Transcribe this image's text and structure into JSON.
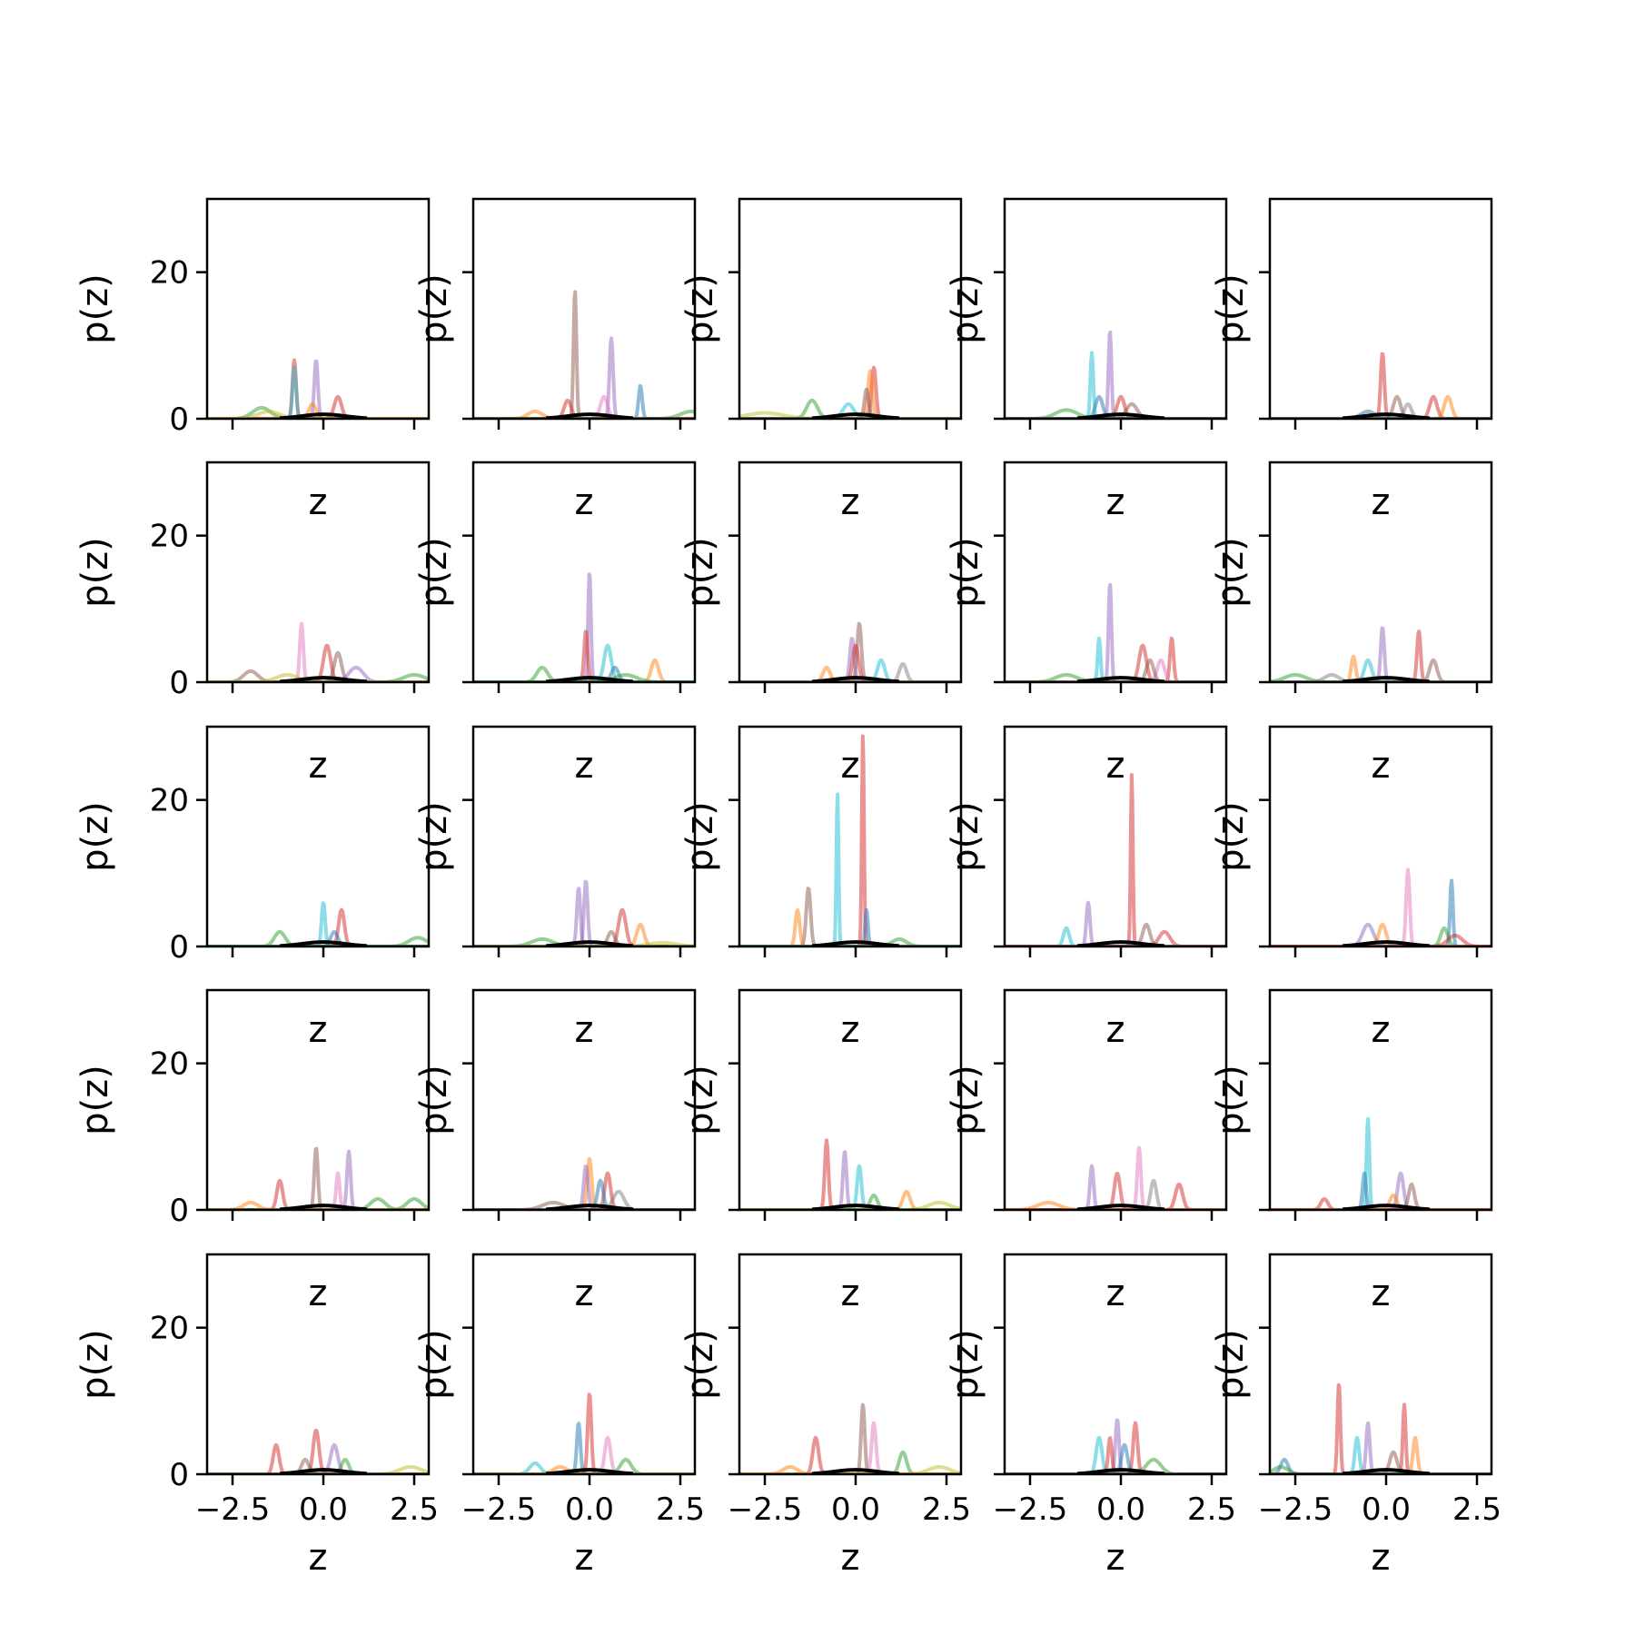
{
  "chart_data": {
    "type": "line",
    "layout": "5x5 grid of line plots",
    "xlabel": "z",
    "ylabel": "p(z)",
    "xlim": [
      -3.2,
      2.9
    ],
    "ylim": [
      0,
      30
    ],
    "xticks": [
      -2.5,
      0.0,
      2.5
    ],
    "xtick_labels": [
      "−2.5",
      "0.0",
      "2.5"
    ],
    "yticks": [
      0,
      20
    ],
    "ytick_labels": [
      "0",
      "20"
    ],
    "palette": [
      "#1f77b4",
      "#ff7f0e",
      "#2ca02c",
      "#d62728",
      "#9467bd",
      "#8c564b",
      "#e377c2",
      "#7f7f7f",
      "#bcbd22",
      "#17becf"
    ],
    "panels": [
      {
        "peaks": [
          [
            -1.7,
            1.5,
            0.25,
            2
          ],
          [
            -0.8,
            8,
            0.05,
            3
          ],
          [
            -0.8,
            7,
            0.05,
            9
          ],
          [
            -0.2,
            8,
            0.05,
            4
          ],
          [
            0.4,
            3,
            0.1,
            3
          ],
          [
            -0.3,
            2,
            0.1,
            1
          ],
          [
            -1.5,
            1,
            0.3,
            8
          ]
        ]
      },
      {
        "peaks": [
          [
            -0.4,
            17.5,
            0.04,
            5
          ],
          [
            0.6,
            11,
            0.05,
            4
          ],
          [
            1.4,
            4.5,
            0.05,
            0
          ],
          [
            -1.5,
            1,
            0.2,
            1
          ],
          [
            0.4,
            3,
            0.1,
            6
          ],
          [
            -0.6,
            2.5,
            0.1,
            3
          ],
          [
            2.8,
            1,
            0.3,
            2
          ]
        ]
      },
      {
        "peaks": [
          [
            0.5,
            7,
            0.06,
            3
          ],
          [
            0.4,
            6.5,
            0.06,
            1
          ],
          [
            -1.2,
            2.5,
            0.15,
            2
          ],
          [
            -0.2,
            2,
            0.15,
            9
          ],
          [
            -2.5,
            0.8,
            0.5,
            8
          ],
          [
            0.3,
            4,
            0.06,
            5
          ]
        ]
      },
      {
        "peaks": [
          [
            -0.3,
            12,
            0.04,
            4
          ],
          [
            -0.8,
            9,
            0.04,
            9
          ],
          [
            -1.5,
            1.2,
            0.3,
            2
          ],
          [
            0.0,
            3,
            0.1,
            3
          ],
          [
            -0.6,
            3,
            0.1,
            0
          ],
          [
            0.3,
            2,
            0.15,
            5
          ]
        ]
      },
      {
        "peaks": [
          [
            -0.1,
            9,
            0.05,
            3
          ],
          [
            0.3,
            3,
            0.1,
            5
          ],
          [
            1.3,
            3,
            0.1,
            3
          ],
          [
            1.7,
            3,
            0.1,
            1
          ],
          [
            0.6,
            2,
            0.1,
            7
          ],
          [
            -0.5,
            1,
            0.2,
            0
          ]
        ]
      },
      {
        "peaks": [
          [
            -0.6,
            8,
            0.05,
            6
          ],
          [
            0.1,
            5,
            0.1,
            3
          ],
          [
            0.4,
            4,
            0.1,
            5
          ],
          [
            -2.0,
            1.5,
            0.2,
            5
          ],
          [
            0.9,
            2,
            0.2,
            4
          ],
          [
            2.5,
            1,
            0.3,
            2
          ],
          [
            -1.0,
            1,
            0.3,
            8
          ]
        ]
      },
      {
        "peaks": [
          [
            0.0,
            15,
            0.04,
            4
          ],
          [
            -0.1,
            7,
            0.05,
            3
          ],
          [
            0.5,
            5,
            0.1,
            9
          ],
          [
            1.8,
            3,
            0.1,
            1
          ],
          [
            -1.3,
            2,
            0.15,
            2
          ],
          [
            0.7,
            2,
            0.1,
            0
          ],
          [
            1.0,
            1,
            0.3,
            2
          ]
        ]
      },
      {
        "peaks": [
          [
            0.1,
            8,
            0.06,
            5
          ],
          [
            -0.1,
            6,
            0.06,
            4
          ],
          [
            0.0,
            5,
            0.08,
            3
          ],
          [
            0.7,
            3,
            0.1,
            9
          ],
          [
            -0.8,
            2,
            0.1,
            1
          ],
          [
            1.3,
            2.5,
            0.1,
            7
          ]
        ]
      },
      {
        "peaks": [
          [
            -0.3,
            13.5,
            0.04,
            4
          ],
          [
            -0.6,
            6,
            0.04,
            9
          ],
          [
            0.6,
            5,
            0.1,
            3
          ],
          [
            1.4,
            6,
            0.05,
            3
          ],
          [
            1.1,
            3,
            0.1,
            6
          ],
          [
            -1.5,
            1,
            0.3,
            2
          ],
          [
            0.8,
            3,
            0.1,
            5
          ]
        ]
      },
      {
        "peaks": [
          [
            0.9,
            7,
            0.05,
            3
          ],
          [
            -0.1,
            7.5,
            0.05,
            4
          ],
          [
            -0.9,
            3.5,
            0.06,
            1
          ],
          [
            -0.5,
            3,
            0.1,
            9
          ],
          [
            1.3,
            3,
            0.1,
            5
          ],
          [
            -2.5,
            1,
            0.3,
            2
          ],
          [
            -1.5,
            1,
            0.2,
            7
          ]
        ]
      },
      {
        "peaks": [
          [
            0.0,
            6,
            0.05,
            9
          ],
          [
            0.5,
            5,
            0.08,
            3
          ],
          [
            -1.2,
            2,
            0.15,
            2
          ],
          [
            2.6,
            1.2,
            0.25,
            2
          ],
          [
            0.3,
            2,
            0.1,
            0
          ]
        ]
      },
      {
        "peaks": [
          [
            -0.1,
            9,
            0.05,
            4
          ],
          [
            -0.3,
            8,
            0.05,
            4
          ],
          [
            0.9,
            5,
            0.1,
            3
          ],
          [
            1.4,
            3,
            0.1,
            1
          ],
          [
            -1.3,
            1,
            0.3,
            2
          ],
          [
            0.6,
            2,
            0.1,
            5
          ],
          [
            2.0,
            0.5,
            0.4,
            8
          ]
        ]
      },
      {
        "peaks": [
          [
            0.2,
            29,
            0.03,
            3
          ],
          [
            -0.5,
            21,
            0.03,
            9
          ],
          [
            -1.3,
            8,
            0.06,
            5
          ],
          [
            -1.6,
            5,
            0.06,
            1
          ],
          [
            0.3,
            5,
            0.04,
            0
          ],
          [
            1.2,
            1,
            0.2,
            2
          ]
        ]
      },
      {
        "peaks": [
          [
            0.3,
            23.5,
            0.03,
            3
          ],
          [
            -0.9,
            6,
            0.05,
            4
          ],
          [
            -1.5,
            2.5,
            0.08,
            9
          ],
          [
            0.7,
            3,
            0.1,
            5
          ],
          [
            1.2,
            2,
            0.15,
            3
          ]
        ]
      },
      {
        "peaks": [
          [
            0.6,
            10.5,
            0.05,
            6
          ],
          [
            1.8,
            9,
            0.04,
            0
          ],
          [
            1.6,
            2.5,
            0.1,
            2
          ],
          [
            -0.5,
            3,
            0.15,
            4
          ],
          [
            -0.1,
            3,
            0.1,
            1
          ],
          [
            1.9,
            1.5,
            0.2,
            3
          ]
        ]
      },
      {
        "peaks": [
          [
            -0.2,
            8.5,
            0.05,
            5
          ],
          [
            0.7,
            8,
            0.05,
            4
          ],
          [
            0.4,
            5,
            0.05,
            6
          ],
          [
            -1.2,
            4,
            0.08,
            3
          ],
          [
            2.5,
            1.5,
            0.2,
            2
          ],
          [
            1.5,
            1.5,
            0.2,
            2
          ],
          [
            -2.0,
            1,
            0.2,
            1
          ]
        ]
      },
      {
        "peaks": [
          [
            0.0,
            7,
            0.06,
            1
          ],
          [
            -0.1,
            6,
            0.06,
            4
          ],
          [
            0.5,
            5,
            0.08,
            3
          ],
          [
            0.3,
            4,
            0.08,
            0
          ],
          [
            0.8,
            2.5,
            0.15,
            7
          ],
          [
            -1.0,
            1,
            0.3,
            5
          ]
        ]
      },
      {
        "peaks": [
          [
            -0.8,
            9.5,
            0.05,
            3
          ],
          [
            -0.3,
            8,
            0.05,
            4
          ],
          [
            0.1,
            6,
            0.06,
            9
          ],
          [
            1.4,
            2.5,
            0.1,
            1
          ],
          [
            2.3,
            1,
            0.3,
            8
          ],
          [
            0.5,
            2,
            0.1,
            2
          ]
        ]
      },
      {
        "peaks": [
          [
            0.5,
            8.5,
            0.05,
            6
          ],
          [
            -0.8,
            6,
            0.05,
            4
          ],
          [
            -0.1,
            5,
            0.08,
            3
          ],
          [
            0.9,
            4,
            0.08,
            7
          ],
          [
            1.6,
            3.5,
            0.1,
            3
          ],
          [
            -2.0,
            1,
            0.3,
            1
          ]
        ]
      },
      {
        "peaks": [
          [
            -0.5,
            12.5,
            0.04,
            9
          ],
          [
            -0.6,
            5,
            0.05,
            0
          ],
          [
            0.4,
            5,
            0.08,
            4
          ],
          [
            0.7,
            3.5,
            0.08,
            5
          ],
          [
            -1.7,
            1.5,
            0.1,
            3
          ],
          [
            0.2,
            2,
            0.1,
            1
          ]
        ]
      },
      {
        "peaks": [
          [
            -0.2,
            6,
            0.08,
            3
          ],
          [
            -1.3,
            4,
            0.08,
            3
          ],
          [
            0.3,
            4,
            0.1,
            4
          ],
          [
            0.6,
            2,
            0.1,
            2
          ],
          [
            2.4,
            1,
            0.3,
            8
          ],
          [
            -0.5,
            2,
            0.1,
            5
          ]
        ]
      },
      {
        "peaks": [
          [
            0.0,
            11,
            0.05,
            3
          ],
          [
            -0.3,
            7,
            0.05,
            0
          ],
          [
            0.5,
            5,
            0.08,
            6
          ],
          [
            -1.5,
            1.5,
            0.15,
            9
          ],
          [
            1.0,
            2,
            0.15,
            2
          ],
          [
            -0.8,
            1,
            0.2,
            1
          ]
        ]
      },
      {
        "peaks": [
          [
            0.2,
            9.5,
            0.05,
            5
          ],
          [
            0.5,
            7,
            0.06,
            6
          ],
          [
            -1.1,
            5,
            0.08,
            3
          ],
          [
            1.3,
            3,
            0.1,
            2
          ],
          [
            2.3,
            1,
            0.3,
            8
          ],
          [
            -1.8,
            1,
            0.2,
            1
          ]
        ]
      },
      {
        "peaks": [
          [
            -0.1,
            7.5,
            0.05,
            4
          ],
          [
            0.4,
            7,
            0.06,
            3
          ],
          [
            -0.6,
            5,
            0.08,
            9
          ],
          [
            0.1,
            4,
            0.08,
            0
          ],
          [
            -0.3,
            5,
            0.05,
            3
          ],
          [
            0.9,
            2,
            0.2,
            2
          ]
        ]
      },
      {
        "peaks": [
          [
            -1.3,
            12.5,
            0.04,
            3
          ],
          [
            0.5,
            9.5,
            0.04,
            3
          ],
          [
            -0.5,
            7,
            0.05,
            4
          ],
          [
            0.8,
            5,
            0.06,
            1
          ],
          [
            -0.8,
            5,
            0.06,
            9
          ],
          [
            -2.8,
            2,
            0.1,
            0
          ],
          [
            -2.9,
            1,
            0.2,
            2
          ],
          [
            0.2,
            3,
            0.1,
            5
          ]
        ]
      }
    ]
  }
}
